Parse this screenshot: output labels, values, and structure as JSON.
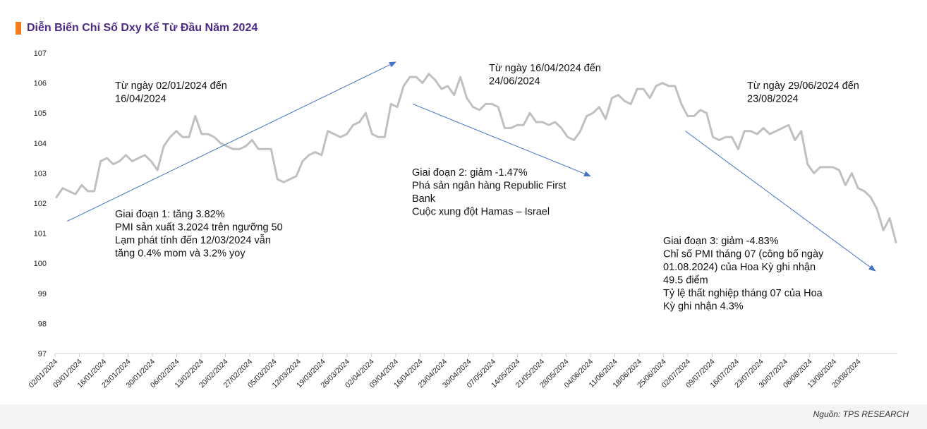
{
  "title": "Diễn Biến Chỉ Số Dxy Kể Từ Đầu Năm 2024",
  "source": "Nguồn: TPS RESEARCH",
  "colors": {
    "title": "#4b2a85",
    "accent": "#f47c20",
    "line": "#c0c0c0",
    "arrow": "#4472c4"
  },
  "chart_data": {
    "type": "line",
    "title": "Diễn Biến Chỉ Số Dxy Kể Từ Đầu Năm 2024",
    "xlabel": "",
    "ylabel": "",
    "ylim": [
      97,
      107
    ],
    "yticks": [
      97,
      98,
      99,
      100,
      101,
      102,
      103,
      104,
      105,
      106,
      107
    ],
    "xtick_labels": [
      "02/01/2024",
      "09/01/2024",
      "16/01/2024",
      "23/01/2024",
      "30/01/2024",
      "06/02/2024",
      "13/02/2024",
      "20/02/2024",
      "27/02/2024",
      "05/03/2024",
      "12/03/2024",
      "19/03/2024",
      "26/03/2024",
      "02/04/2024",
      "09/04/2024",
      "16/04/2024",
      "23/04/2024",
      "30/04/2024",
      "07/05/2024",
      "14/05/2024",
      "21/05/2024",
      "28/05/2024",
      "04/06/2024",
      "11/06/2024",
      "18/06/2024",
      "25/06/2024",
      "02/07/2024",
      "09/07/2024",
      "16/07/2024",
      "23/07/2024",
      "30/07/2024",
      "06/08/2024",
      "13/08/2024",
      "20/08/2024"
    ],
    "series": [
      {
        "name": "DXY",
        "values": [
          102.2,
          102.5,
          102.4,
          102.3,
          102.6,
          102.4,
          102.4,
          103.4,
          103.5,
          103.3,
          103.4,
          103.6,
          103.4,
          103.5,
          103.6,
          103.4,
          103.1,
          103.9,
          104.2,
          104.4,
          104.2,
          104.2,
          104.9,
          104.3,
          104.3,
          104.2,
          104.0,
          103.9,
          103.8,
          103.8,
          103.9,
          104.1,
          103.8,
          103.8,
          103.8,
          102.8,
          102.7,
          102.8,
          102.9,
          103.4,
          103.6,
          103.7,
          103.6,
          104.4,
          104.3,
          104.2,
          104.3,
          104.6,
          104.7,
          105.0,
          104.3,
          104.2,
          104.2,
          105.3,
          105.2,
          105.9,
          106.2,
          106.2,
          106.0,
          106.3,
          106.1,
          105.8,
          105.9,
          105.6,
          106.2,
          105.5,
          105.2,
          105.1,
          105.3,
          105.3,
          105.2,
          104.5,
          104.5,
          104.6,
          104.6,
          105.0,
          104.7,
          104.7,
          104.6,
          104.7,
          104.5,
          104.2,
          104.1,
          104.4,
          104.9,
          105.0,
          105.2,
          104.8,
          105.5,
          105.6,
          105.4,
          105.3,
          105.8,
          105.8,
          105.5,
          105.9,
          106.0,
          105.9,
          105.9,
          105.3,
          104.9,
          104.9,
          105.1,
          105.0,
          104.2,
          104.1,
          104.2,
          104.2,
          103.8,
          104.4,
          104.4,
          104.3,
          104.5,
          104.3,
          104.4,
          104.5,
          104.6,
          104.1,
          104.4,
          103.3,
          103.0,
          103.2,
          103.2,
          103.2,
          103.1,
          102.6,
          103.0,
          102.5,
          102.4,
          102.2,
          101.8,
          101.1,
          101.5,
          100.7
        ]
      }
    ],
    "annotations": [
      {
        "lines": [
          "Từ ngày 02/01/2024 đến",
          "16/04/2024"
        ]
      },
      {
        "lines": [
          "Từ ngày 16/04/2024 đến",
          "24/06/2024"
        ]
      },
      {
        "lines": [
          "Từ ngày 29/06/2024 đến",
          "23/08/2024"
        ]
      },
      {
        "lines": [
          "Giai đoạn 1: tăng 3.82%",
          "PMI sản xuất 3.2024 trên ngưỡng 50",
          "Lạm phát tính đến 12/03/2024 vẫn",
          "tăng 0.4% mom và 3.2% yoy"
        ]
      },
      {
        "lines": [
          "Giai đoạn 2: giảm -1.47%",
          "Phá sản ngân hàng Republic First",
          "Bank",
          "Cuộc xung đột Hamas – Israel"
        ]
      },
      {
        "lines": [
          "Giai đoạn 3: giảm -4.83%",
          "Chỉ số PMI tháng 07 (công bố ngày",
          "01.08.2024) của Hoa Kỳ ghi nhận",
          "49.5 điểm",
          "Tỷ lệ thất nghiệp tháng 07 của Hoa",
          "Kỳ ghi nhận 4.3%"
        ]
      }
    ],
    "trend_arrows": [
      {
        "name": "phase-1-trend",
        "from": {
          "x_index": 0.5,
          "y": 101.4
        },
        "to": {
          "x_index": 14.0,
          "y": 106.7
        }
      },
      {
        "name": "phase-2-trend",
        "from": {
          "x_index": 14.7,
          "y": 105.3
        },
        "to": {
          "x_index": 22.0,
          "y": 102.9
        }
      },
      {
        "name": "phase-3-trend",
        "from": {
          "x_index": 25.9,
          "y": 104.4
        },
        "to": {
          "x_index": 33.7,
          "y": 99.75
        }
      }
    ]
  }
}
